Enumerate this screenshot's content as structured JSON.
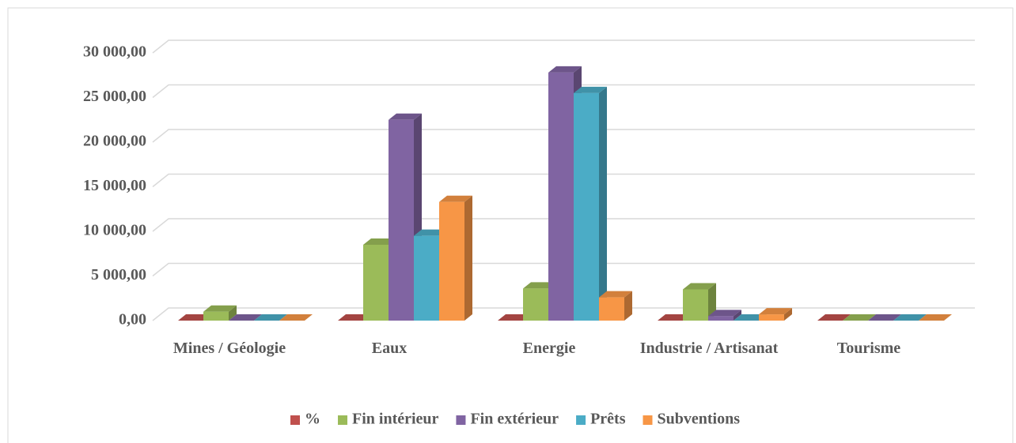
{
  "chart_data": {
    "type": "bar3d",
    "categories": [
      "Mines / Géologie",
      "Eaux",
      "Energie",
      "Industrie / Artisanat",
      "Tourisme"
    ],
    "series": [
      {
        "name": "%",
        "color": "#c0504d",
        "values": [
          0,
          0,
          0,
          0,
          0
        ]
      },
      {
        "name": "Fin intérieur",
        "color": "#9bbb59",
        "values": [
          1000,
          8500,
          3600,
          3500,
          0
        ]
      },
      {
        "name": "Fin extérieur",
        "color": "#8064a2",
        "values": [
          0,
          22500,
          27800,
          500,
          0
        ]
      },
      {
        "name": "Prêts",
        "color": "#4bacc6",
        "values": [
          0,
          9500,
          25500,
          0,
          0
        ]
      },
      {
        "name": "Subventions",
        "color": "#f79646",
        "values": [
          0,
          13300,
          2600,
          700,
          0
        ]
      }
    ],
    "ylim": [
      0,
      30000
    ],
    "yticks": [
      {
        "value": 0,
        "label": "0,00"
      },
      {
        "value": 5000,
        "label": "5 000,00"
      },
      {
        "value": 10000,
        "label": "10 000,00"
      },
      {
        "value": 15000,
        "label": "15 000,00"
      },
      {
        "value": 20000,
        "label": "20 000,00"
      },
      {
        "value": 25000,
        "label": "25 000,00"
      },
      {
        "value": 30000,
        "label": "30 000,00"
      }
    ],
    "grid": true,
    "legend": "bottom"
  }
}
